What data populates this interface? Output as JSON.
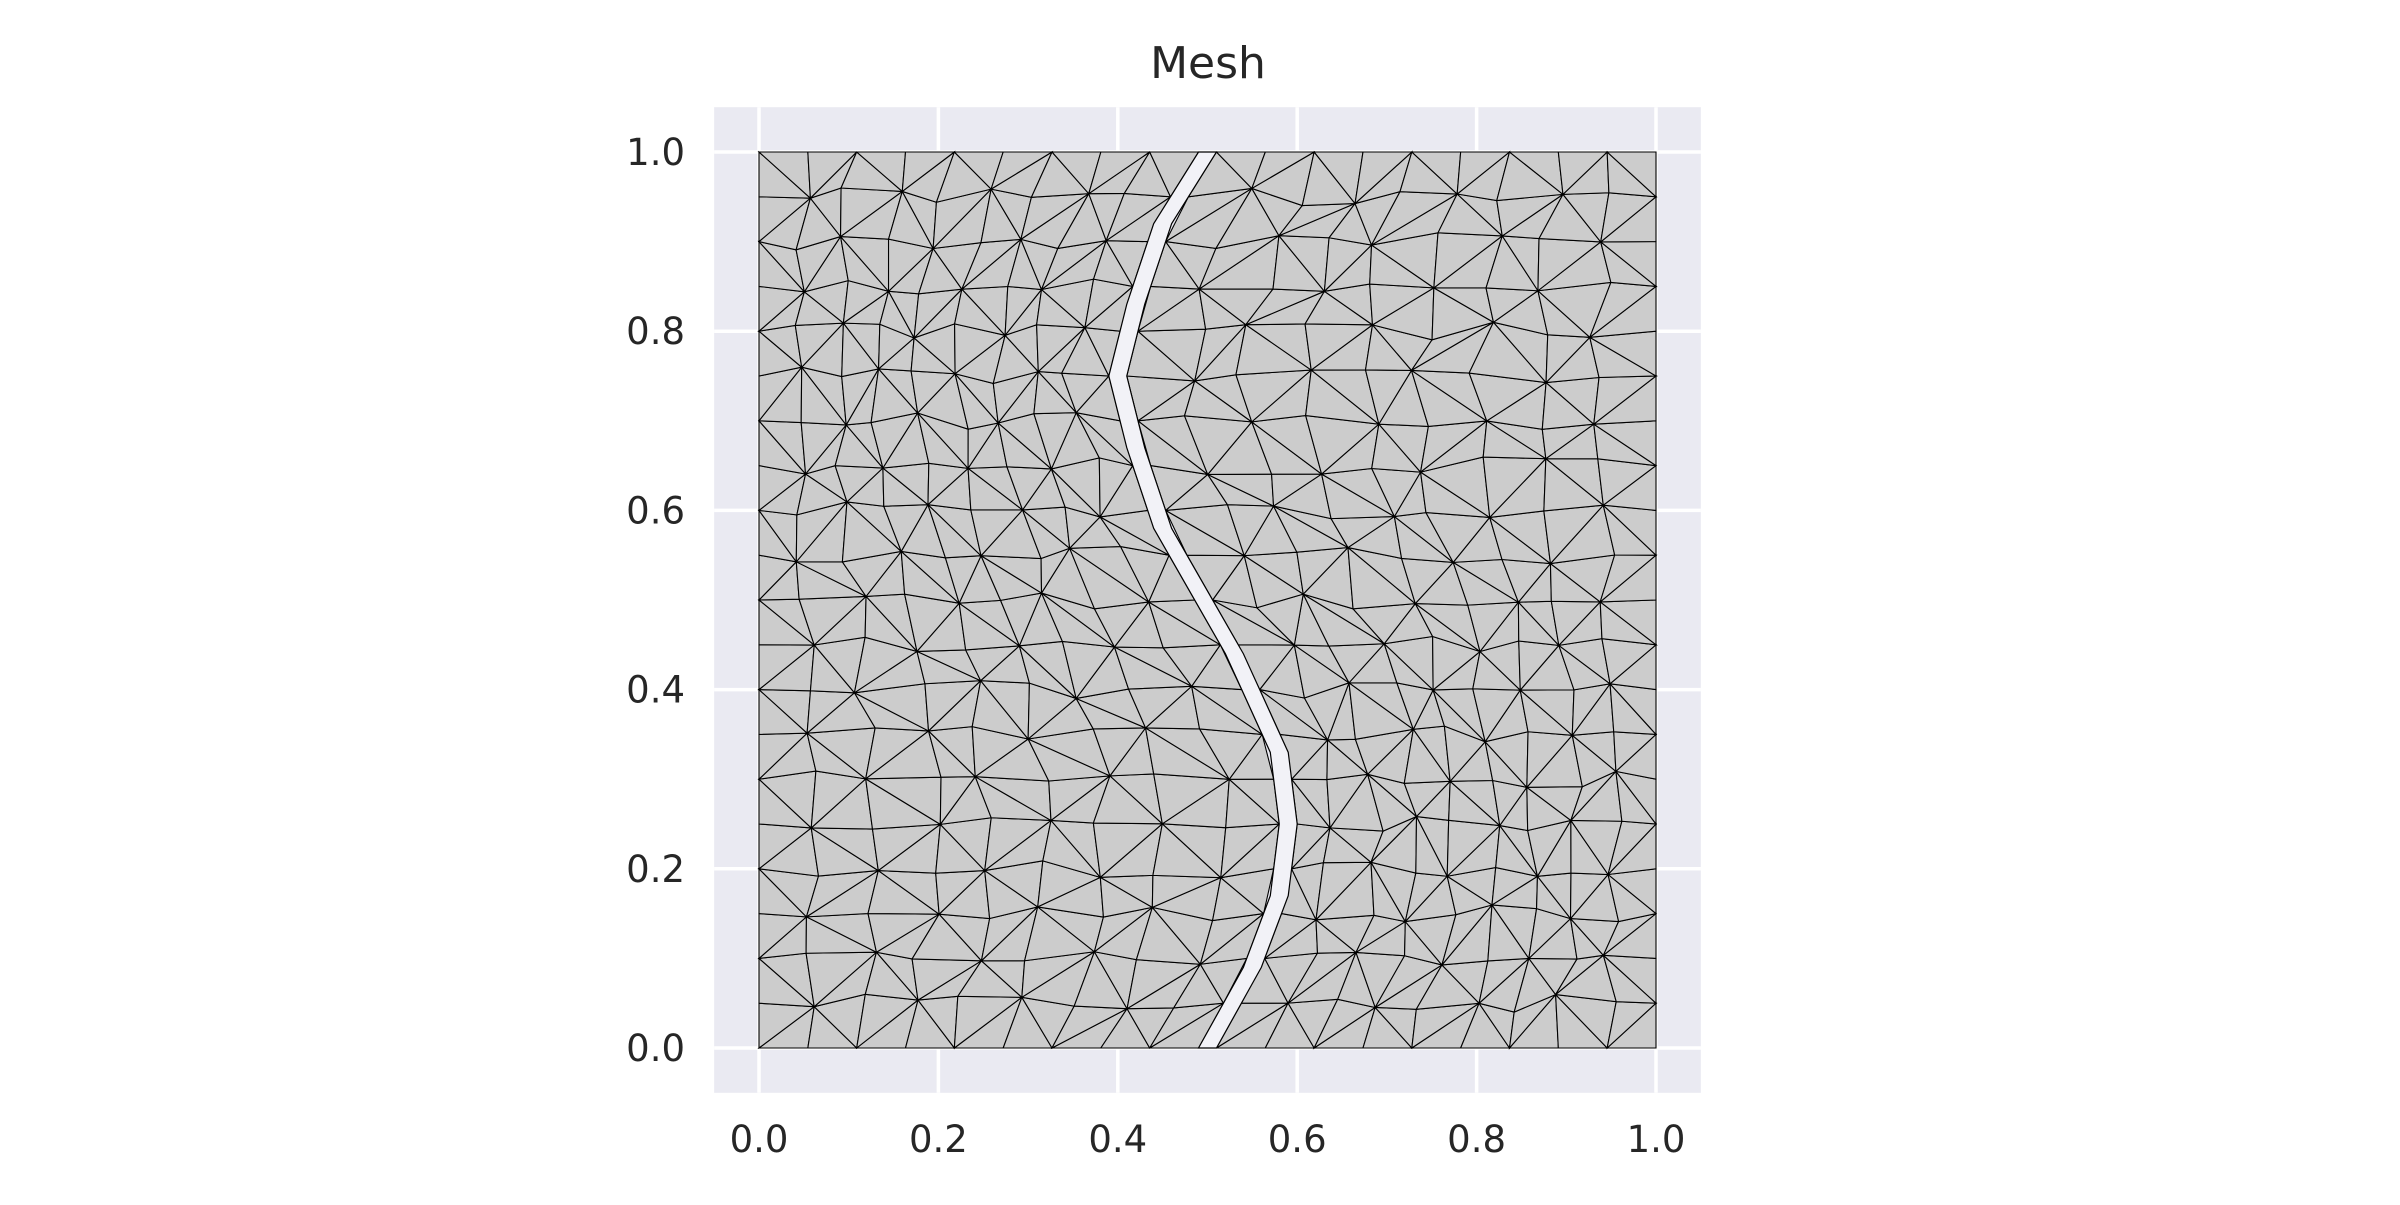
{
  "chart_data": {
    "type": "triangular-mesh",
    "title": "Mesh",
    "xlabel": "",
    "ylabel": "",
    "xlim": [
      -0.05,
      1.05
    ],
    "ylim": [
      -0.05,
      1.05
    ],
    "aspect": "equal",
    "grid": true,
    "x_ticks": [
      "0.0",
      "0.2",
      "0.4",
      "0.6",
      "0.8",
      "1.0"
    ],
    "y_ticks": [
      "0.0",
      "0.2",
      "0.4",
      "0.6",
      "0.8",
      "1.0"
    ],
    "domain": {
      "x": [
        0,
        1
      ],
      "y": [
        0,
        1
      ]
    },
    "crack": {
      "description": "narrow gap separating the left and right mesh regions",
      "left_edge": [
        [
          0.49,
          0.0
        ],
        [
          0.54,
          0.09
        ],
        [
          0.57,
          0.17
        ],
        [
          0.58,
          0.25
        ],
        [
          0.57,
          0.33
        ],
        [
          0.52,
          0.44
        ],
        [
          0.44,
          0.58
        ],
        [
          0.41,
          0.67
        ],
        [
          0.39,
          0.75
        ],
        [
          0.41,
          0.83
        ],
        [
          0.44,
          0.92
        ],
        [
          0.49,
          1.0
        ]
      ],
      "right_edge": [
        [
          0.51,
          0.0
        ],
        [
          0.56,
          0.09
        ],
        [
          0.59,
          0.17
        ],
        [
          0.6,
          0.25
        ],
        [
          0.59,
          0.33
        ],
        [
          0.54,
          0.44
        ],
        [
          0.46,
          0.58
        ],
        [
          0.43,
          0.67
        ],
        [
          0.41,
          0.75
        ],
        [
          0.43,
          0.83
        ],
        [
          0.46,
          0.92
        ],
        [
          0.51,
          1.0
        ]
      ]
    },
    "mesh_fill": "#cccccc",
    "mesh_edge": "#000000",
    "crack_fill": "#f2f2f7",
    "axes_bg": "#eaeaf2",
    "grid_color": "#ffffff"
  }
}
